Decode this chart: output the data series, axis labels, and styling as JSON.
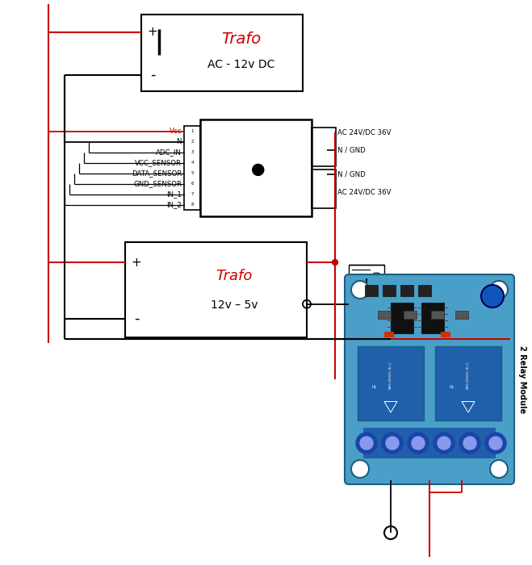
{
  "bg": "#ffffff",
  "red": "#cc0000",
  "blk": "#000000",
  "blue_board": "#4a9fc8",
  "blue_dark": "#1a5f80",
  "blue_relay": "#2060aa",
  "blue_terminal": "#3070cc",
  "labels_left": [
    "Vcc",
    "N",
    "ADC_IN",
    "VCC_SENSOR",
    "DATA_SENSOR",
    "GND_SENSOR",
    "IN_1",
    "IN_2"
  ],
  "trafo1_title": "Trafo",
  "trafo1_sub": "AC - 12v DC",
  "trafo2_title": "Trafo",
  "trafo2_sub": "12v – 5v",
  "relay_label": "2 Relay Module",
  "right_labels": [
    "AC 24V/DC 36V",
    "N / GND",
    "N / GND",
    "AC 24V/DC 36V"
  ]
}
